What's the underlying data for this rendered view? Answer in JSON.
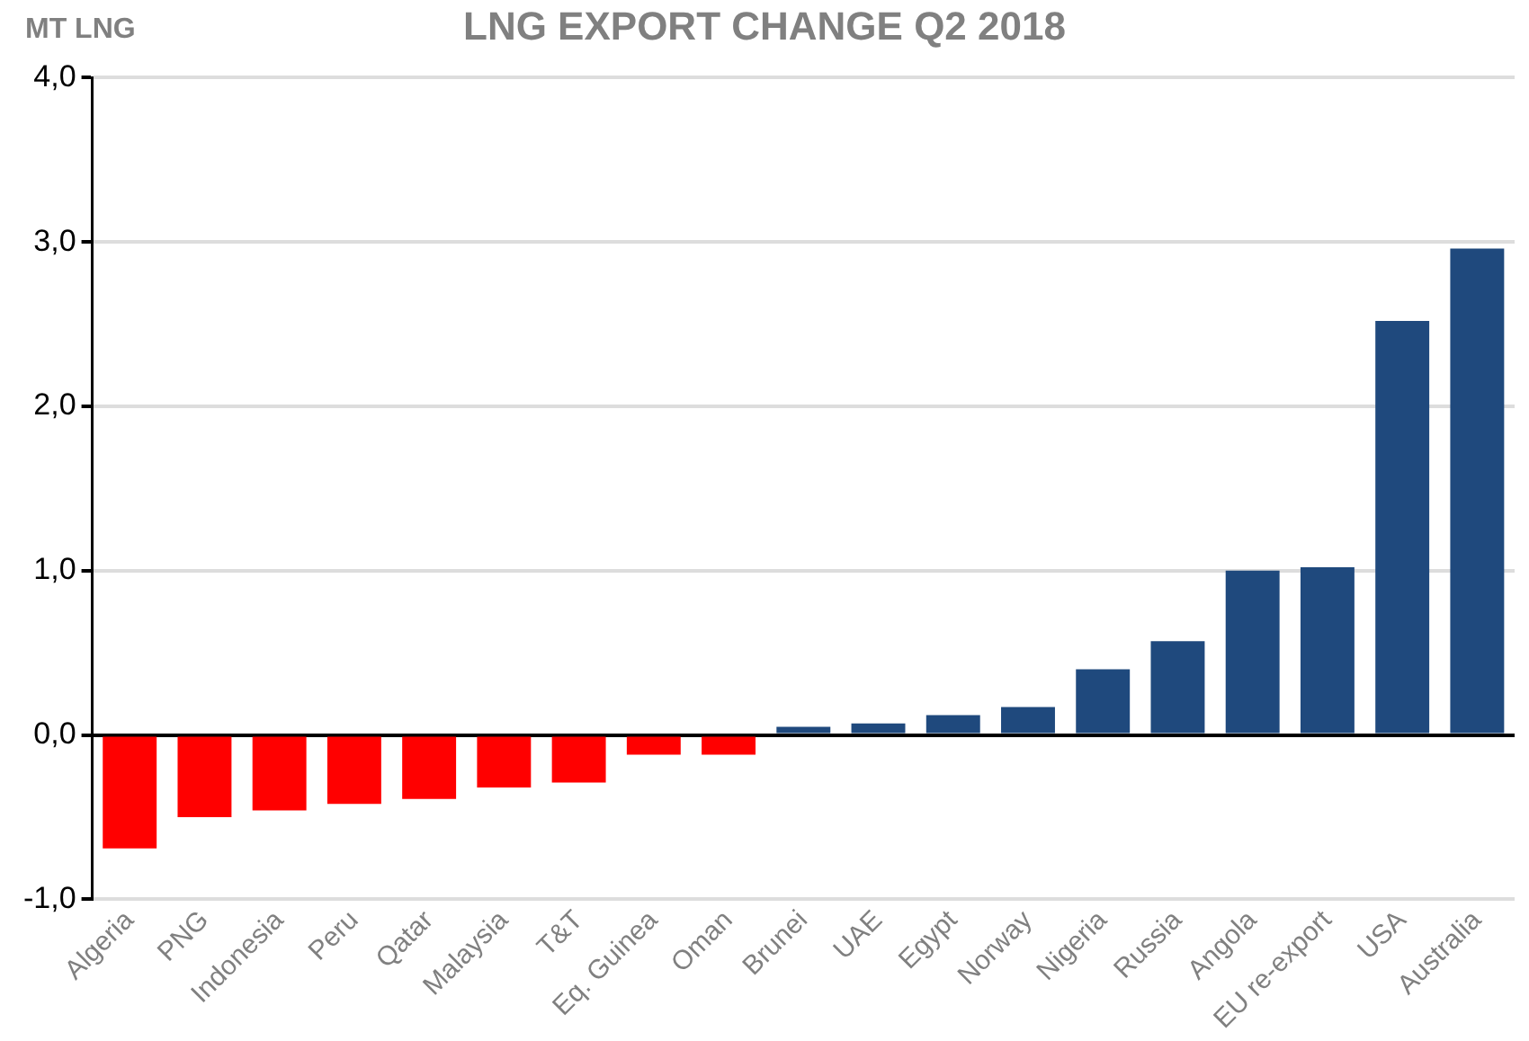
{
  "chart_data": {
    "type": "bar",
    "title": "LNG EXPORT CHANGE Q2 2018",
    "ylabel": "MT LNG",
    "categories": [
      "Algeria",
      "PNG",
      "Indonesia",
      "Peru",
      "Qatar",
      "Malaysia",
      "T&T",
      "Eq. Guinea",
      "Oman",
      "Brunei",
      "UAE",
      "Egypt",
      "Norway",
      "Nigeria",
      "Russia",
      "Angola",
      "EU re-export",
      "USA",
      "Australia"
    ],
    "values": [
      -0.69,
      -0.5,
      -0.46,
      -0.42,
      -0.39,
      -0.32,
      -0.29,
      -0.12,
      -0.12,
      0.05,
      0.07,
      0.12,
      0.17,
      0.4,
      0.57,
      1.0,
      1.02,
      2.52,
      2.96
    ],
    "colors": [
      "#ff0000",
      "#ff0000",
      "#ff0000",
      "#ff0000",
      "#ff0000",
      "#ff0000",
      "#ff0000",
      "#ff0000",
      "#ff0000",
      "#1f497d",
      "#1f497d",
      "#1f497d",
      "#1f497d",
      "#1f497d",
      "#1f497d",
      "#1f497d",
      "#1f497d",
      "#1f497d",
      "#1f497d"
    ],
    "ylim": [
      -1,
      4
    ],
    "yticks": [
      {
        "value": -1,
        "label": "-1,0"
      },
      {
        "value": 0,
        "label": "0,0"
      },
      {
        "value": 1,
        "label": "1,0"
      },
      {
        "value": 2,
        "label": "2,0"
      },
      {
        "value": 3,
        "label": "3,0"
      },
      {
        "value": 4,
        "label": "4,0"
      }
    ],
    "grid": "y"
  }
}
